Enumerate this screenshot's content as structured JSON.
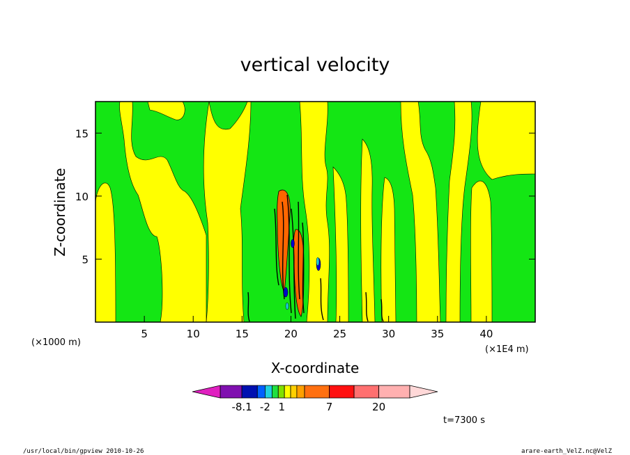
{
  "chart_data": {
    "type": "heatmap",
    "title": "vertical velocity",
    "xlabel": "X-coordinate",
    "ylabel": "Z-coordinate",
    "x_unit_label": "(×1000 m)",
    "x_scale_label": "(×1E4 m)",
    "xlim": [
      0,
      45
    ],
    "ylim": [
      0,
      17.5
    ],
    "x_ticks": [
      "5",
      "10",
      "15",
      "20",
      "25",
      "30",
      "35",
      "40"
    ],
    "y_ticks": [
      "5",
      "10",
      "15"
    ],
    "colors": {
      "background": "#14e614",
      "positive_band": "#ffff00",
      "strong_up": "#ff6600",
      "strong_down": "#000000",
      "mid_down": "#0000cc"
    },
    "colorbar": {
      "levels": [
        "-8.1",
        "-2",
        "1",
        "7",
        "20"
      ],
      "colors": [
        "#e020c0",
        "#8010b0",
        "#0010b0",
        "#0060ff",
        "#20d0e0",
        "#20e040",
        "#80e000",
        "#ffff00",
        "#ffd000",
        "#ffa000",
        "#ff7010",
        "#ff1010",
        "#ff7070",
        "#ffb0b0",
        "#ffd8d8"
      ]
    },
    "time_label": "t=7300 s"
  },
  "footer": {
    "left": "/usr/local/bin/gpview   2010-10-26",
    "right": "arare-earth_VelZ.nc@VelZ"
  }
}
